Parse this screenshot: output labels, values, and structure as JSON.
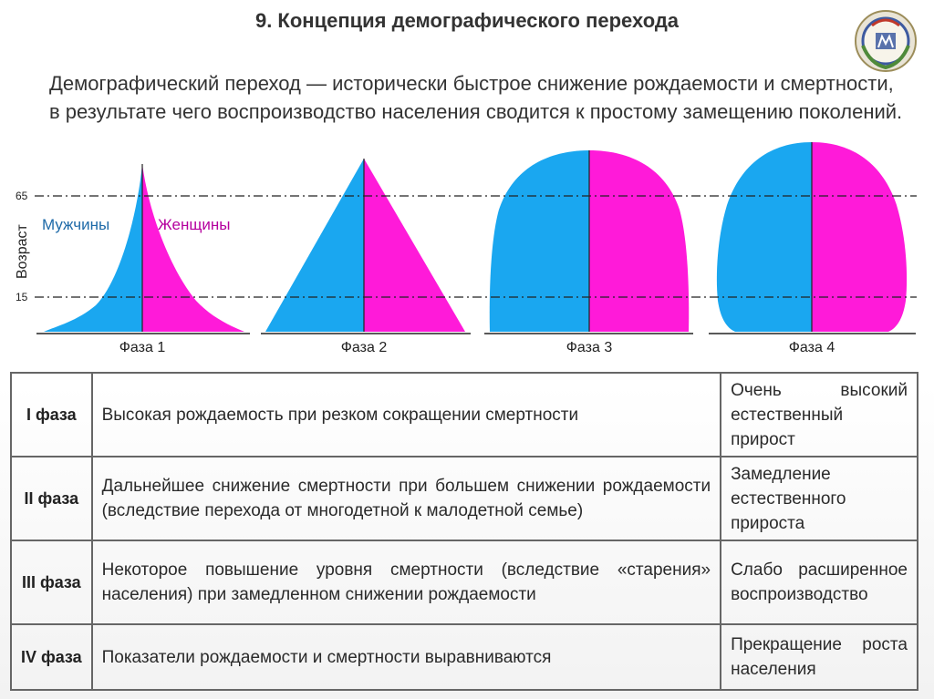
{
  "slide": {
    "title": "9. Концепция демографического перехода",
    "intro": "Демографический переход — исторически быстрое снижение рождаемости и смертности, в результате чего воспроизводство населения сводится к простому замещению поколений.",
    "emblem": "university-emblem"
  },
  "chart": {
    "y_axis_label": "Возраст",
    "age_marks": [
      "65",
      "15"
    ],
    "male_label": "Мужчины",
    "female_label": "Женщины",
    "phase_labels": [
      "Фаза 1",
      "Фаза 2",
      "Фаза 3",
      "Фаза 4"
    ],
    "colors": {
      "male": "#1aa7f0",
      "female": "#ff1ad9",
      "divider": "#222222"
    }
  },
  "table": {
    "rows": [
      {
        "phase": "I фаза",
        "description": "Высокая рождаемость при резком сокращении смертности",
        "result": "Очень высокий естественный прирост"
      },
      {
        "phase": "II фаза",
        "description": "Дальнейшее снижение смертности при большем снижении рождаемости (вследствие перехода от многодетной к малодетной семье)",
        "result": "Замедление естественного прироста"
      },
      {
        "phase": "III фаза",
        "description": "Некоторое повышение уровня смертности (вследствие «старения» населения) при замедленном снижении рождаемости",
        "result": "Слабо расширенное воспроизводство"
      },
      {
        "phase": "IV фаза",
        "description": "Показатели рождаемости и смертности выравниваются",
        "result": "Прекращение роста населения"
      }
    ]
  }
}
